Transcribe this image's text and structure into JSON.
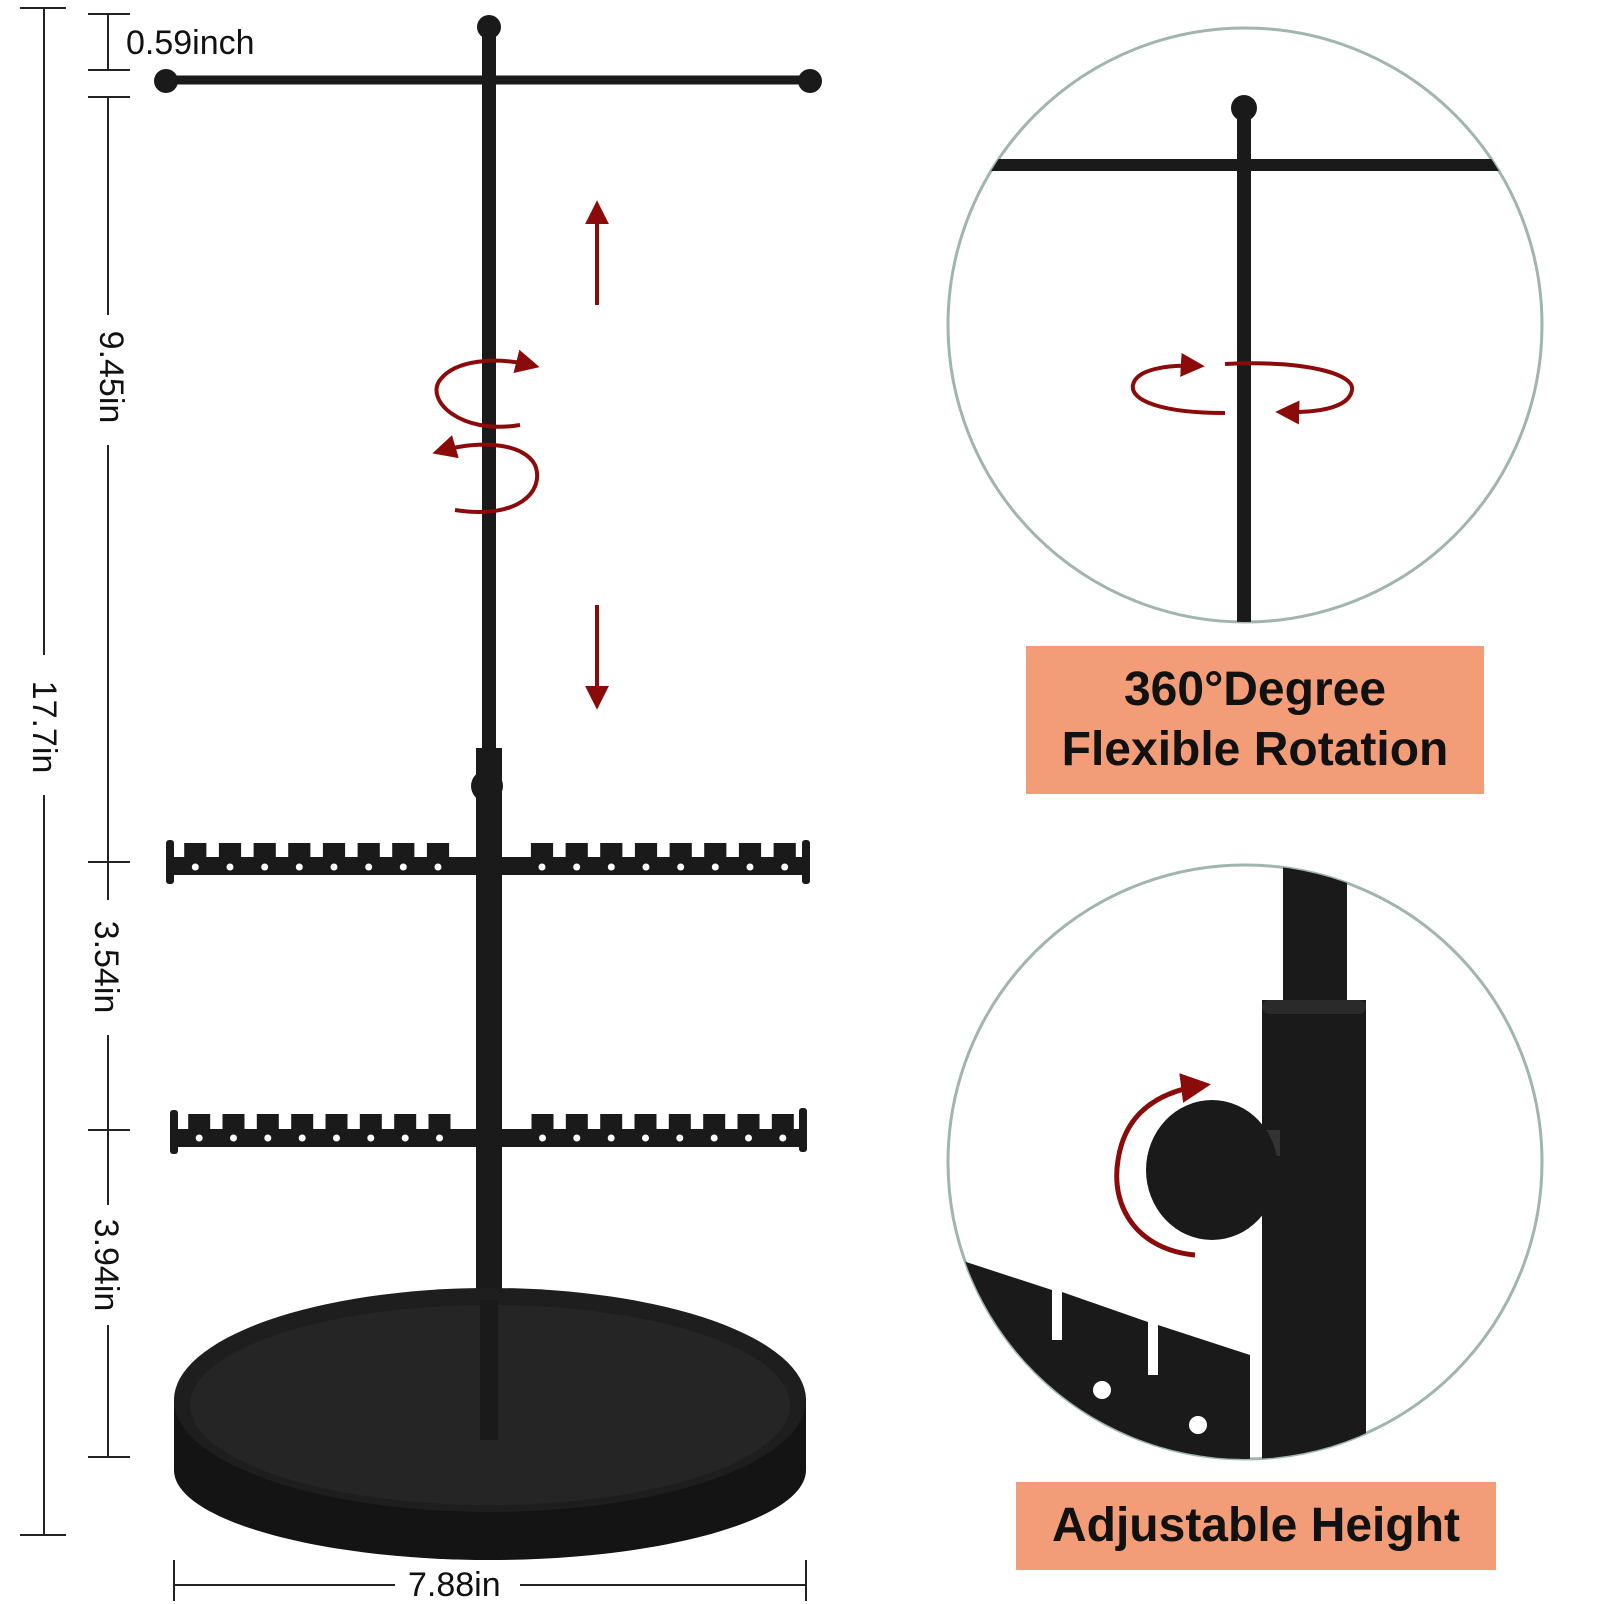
{
  "dimensions": {
    "top_gap": "0.59inch",
    "upper_section": "9.45in",
    "total_height": "17.7in",
    "middle_section": "3.54in",
    "lower_section": "3.94in",
    "base_width": "7.88in"
  },
  "features": {
    "rotation_line1": "360°Degree",
    "rotation_line2": "Flexible Rotation",
    "height_label": "Adjustable Height"
  },
  "colors": {
    "stand": "#1a1a1a",
    "arrow": "#8b0a0a",
    "callout_fill": "#f29c78",
    "circle_stroke": "#9fb5ad"
  }
}
